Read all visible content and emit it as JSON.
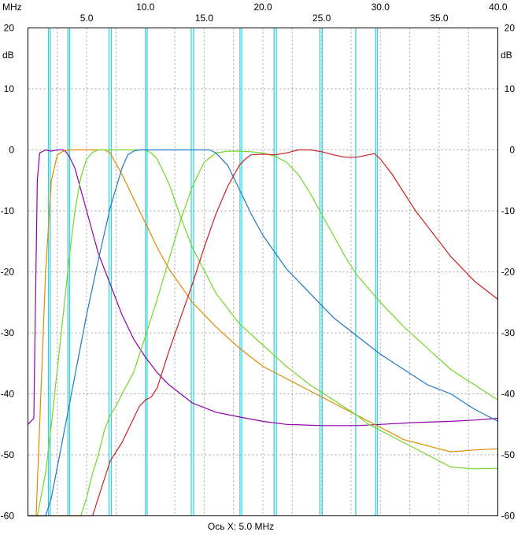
{
  "chart_data": {
    "type": "line",
    "xlabel": "Ось X: 5.0 MHz",
    "x_unit": "MHz",
    "y_unit_left": "dB",
    "y_unit_right": "dB",
    "xlim": [
      0,
      40
    ],
    "ylim": [
      -60,
      20
    ],
    "x_ticks": [
      {
        "value": 5,
        "label": "5.0"
      },
      {
        "value": 10,
        "label": "10.0"
      },
      {
        "value": 15,
        "label": "15.0"
      },
      {
        "value": 20,
        "label": "20.0"
      },
      {
        "value": 25,
        "label": "25.0"
      },
      {
        "value": 30,
        "label": "30.0"
      },
      {
        "value": 35,
        "label": "35.0"
      },
      {
        "value": 40,
        "label": "40.0"
      }
    ],
    "y_ticks": [
      {
        "value": 20,
        "label": "20"
      },
      {
        "value": 10,
        "label": "10"
      },
      {
        "value": 0,
        "label": "0"
      },
      {
        "value": -10,
        "label": "-10"
      },
      {
        "value": -20,
        "label": "-20"
      },
      {
        "value": -30,
        "label": "-30"
      },
      {
        "value": -40,
        "label": "-40"
      },
      {
        "value": -50,
        "label": "-50"
      },
      {
        "value": -60,
        "label": "-60"
      }
    ],
    "grid": true,
    "marker_lines_x": [
      1.75,
      1.9,
      3.4,
      3.55,
      6.9,
      7.1,
      10.0,
      10.15,
      13.9,
      14.1,
      18.05,
      18.2,
      20.95,
      21.15,
      24.85,
      25.05,
      27.9,
      29.6,
      29.75
    ],
    "colors": {
      "background": "#ffffff",
      "grid": "#a0a0a0",
      "markers": "#39d3de"
    },
    "series": [
      {
        "color": "#8e00a8",
        "x": [
          0,
          0.5,
          0.6,
          0.8,
          1.0,
          1.5,
          2.0,
          2.5,
          3.0,
          3.2,
          3.5,
          4.0,
          5.0,
          6.0,
          7.0,
          8.0,
          9.0,
          10.0,
          11.0,
          12.0,
          14.0,
          16.0,
          18.0,
          20.0,
          22.0,
          25.0,
          28.0,
          30.0,
          33.0,
          36.0,
          38.0,
          40.0
        ],
        "y": [
          -45,
          -44,
          -30,
          -5,
          -0.5,
          0,
          -0.2,
          0,
          0,
          -0.3,
          -1,
          -3,
          -10,
          -17,
          -22,
          -27,
          -31,
          -34,
          -36.5,
          -38.5,
          -41.5,
          -43,
          -43.8,
          -44.5,
          -45,
          -45.2,
          -45.2,
          -45,
          -44.7,
          -44.5,
          -44.3,
          -44
        ]
      },
      {
        "color": "#e08a00",
        "x": [
          0,
          0.7,
          1.0,
          1.5,
          2.0,
          2.5,
          3.0,
          3.5,
          4.0,
          5.0,
          6.0,
          6.5,
          7.0,
          8.0,
          9.0,
          10.0,
          11.0,
          12.0,
          14.0,
          16.0,
          18.0,
          20.0,
          22.0,
          24.0,
          26.0,
          28.0,
          30.0,
          32.0,
          34.0,
          35.0,
          36.0,
          38.0,
          40.0
        ],
        "y": [
          -60,
          -60,
          -45,
          -20,
          -5,
          -0.8,
          -0.2,
          0,
          0,
          0,
          0,
          0,
          -0.5,
          -4,
          -8,
          -12,
          -16,
          -19.5,
          -25,
          -29,
          -32.5,
          -35.5,
          -37.5,
          -39.5,
          -41.5,
          -43.5,
          -45.5,
          -47.5,
          -48.5,
          -49,
          -49.5,
          -49.2,
          -49
        ]
      },
      {
        "color": "#70d826",
        "x": [
          0,
          0.8,
          1.5,
          2.0,
          2.5,
          3.0,
          3.5,
          4.0,
          4.5,
          5.0,
          5.5,
          6.0,
          6.5,
          7.0,
          8.0,
          9.0,
          10.0,
          10.5,
          11.0,
          12.0,
          13.0,
          14.0,
          16.0,
          18.0,
          20.0,
          22.0,
          24.0,
          26.0,
          28.0,
          29.0,
          30.0,
          32.0,
          34.0,
          35.0,
          36.0,
          38.0,
          40.0
        ],
        "y": [
          -60,
          -60,
          -53,
          -45,
          -36,
          -27,
          -18,
          -10,
          -4.5,
          -1.5,
          -0.4,
          0,
          0,
          0,
          0,
          0,
          0,
          -0.5,
          -1.5,
          -5.5,
          -11,
          -16,
          -23.5,
          -28.5,
          -32,
          -35.5,
          -38.5,
          -41,
          -43.5,
          -45,
          -46,
          -48,
          -50,
          -51,
          -52,
          -52.3,
          -52.2
        ]
      },
      {
        "color": "#70d826",
        "x": [
          0,
          4.5,
          5.0,
          5.5,
          6.0,
          6.5,
          7.0,
          7.5,
          8.0,
          9.0,
          10.0,
          11.0,
          12.0,
          13.0,
          14.0,
          15.0,
          16.0,
          17.0,
          18.0,
          19.0,
          20.0,
          21.0,
          22.0,
          23.0,
          24.0,
          25.0,
          26.0,
          27.0,
          28.0,
          30.0,
          32.0,
          34.0,
          36.0,
          38.0,
          40.0
        ],
        "y": [
          -60,
          -60,
          -57,
          -53,
          -50,
          -46,
          -43.5,
          -42,
          -40,
          -36.5,
          -30.5,
          -24.5,
          -18,
          -11.5,
          -6,
          -2,
          -0.5,
          -0.2,
          -0.2,
          -0.3,
          -0.5,
          -1,
          -2,
          -4,
          -7,
          -10.5,
          -14,
          -17.5,
          -20.5,
          -25,
          -29,
          -32.5,
          -36,
          -38.5,
          -41
        ]
      },
      {
        "color": "#1f78c8",
        "x": [
          0,
          1.5,
          2.0,
          3.0,
          4.0,
          5.0,
          6.0,
          7.0,
          8.0,
          8.5,
          9.0,
          9.5,
          10.0,
          11.0,
          12.0,
          13.0,
          14.0,
          15.0,
          15.5,
          16.0,
          17.0,
          18.0,
          19.0,
          20.0,
          22.0,
          24.0,
          25.0,
          26.0,
          28.0,
          30.0,
          32.0,
          34.0,
          36.0,
          38.0,
          40.0
        ],
        "y": [
          -60,
          -60,
          -57,
          -47,
          -37,
          -27,
          -18,
          -9.5,
          -3,
          -0.8,
          -0.2,
          0,
          0,
          0,
          0,
          0,
          0,
          0,
          0,
          -0.5,
          -2.5,
          -6.5,
          -10.5,
          -14,
          -19.5,
          -23.5,
          -25.5,
          -27.5,
          -30.5,
          -33.5,
          -36,
          -38.5,
          -40,
          -42.5,
          -44.5
        ]
      },
      {
        "color": "#cc2020",
        "x": [
          0,
          5.0,
          5.5,
          6.0,
          6.5,
          7.0,
          8.0,
          9.0,
          9.5,
          10.0,
          10.5,
          11.0,
          12.0,
          13.0,
          14.0,
          15.0,
          16.0,
          17.0,
          18.0,
          18.5,
          19.0,
          20.0,
          21.0,
          22.0,
          23.0,
          24.0,
          25.0,
          26.0,
          27.0,
          28.0,
          29.0,
          29.5,
          30.0,
          31.0,
          32.0,
          33.0,
          34.0,
          35.0,
          36.0,
          38.0,
          40.0
        ],
        "y": [
          -60,
          -60,
          -60,
          -57,
          -54,
          -51,
          -48,
          -44,
          -42,
          -41,
          -40.5,
          -39,
          -33,
          -27.5,
          -22,
          -16,
          -10.5,
          -6,
          -2.5,
          -1.5,
          -0.8,
          -0.7,
          -0.8,
          -0.5,
          0,
          0,
          -0.3,
          -0.8,
          -1.2,
          -1.2,
          -0.8,
          -0.6,
          -1.5,
          -4,
          -7,
          -10,
          -12.5,
          -15,
          -17.5,
          -21.5,
          -24.5
        ]
      }
    ]
  }
}
